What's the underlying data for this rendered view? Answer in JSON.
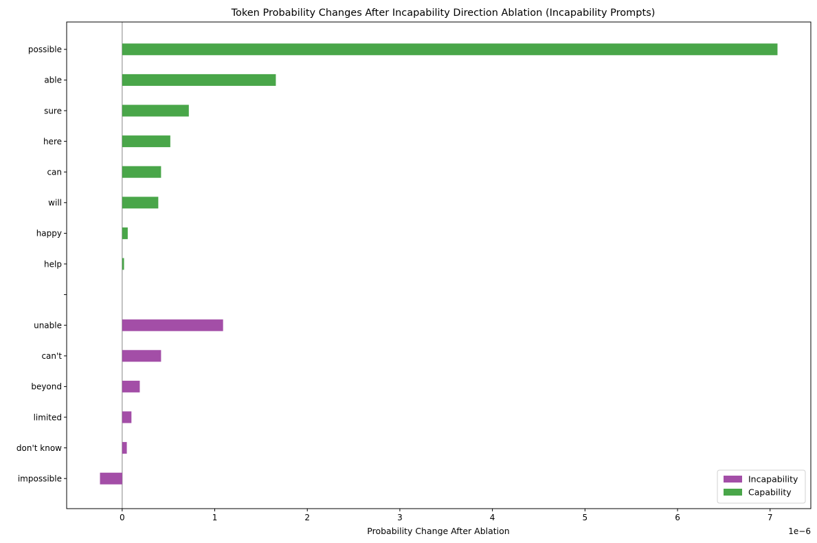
{
  "chart_data": {
    "type": "bar",
    "orientation": "horizontal",
    "title": "Token Probability Changes After Incapability Direction Ablation (Incapability Prompts)",
    "xlabel": "Probability Change After Ablation",
    "ylabel": "",
    "x_scale_label": "1e−6",
    "xlim": [
      -0.6,
      7.44
    ],
    "xticks": [
      0,
      1,
      2,
      3,
      4,
      5,
      6,
      7
    ],
    "grid": false,
    "legend_position": "lower-right",
    "categories": [
      "impossible",
      "don't know",
      "limited",
      "beyond",
      "can't",
      "unable",
      "",
      "help",
      "happy",
      "will",
      "can",
      "here",
      "sure",
      "able",
      "possible"
    ],
    "series": [
      {
        "name": "Incapability",
        "color": "#9b3fa0",
        "points": [
          {
            "label": "unable",
            "value": 1.09
          },
          {
            "label": "can't",
            "value": 0.42
          },
          {
            "label": "beyond",
            "value": 0.19
          },
          {
            "label": "limited",
            "value": 0.1
          },
          {
            "label": "don't know",
            "value": 0.05
          },
          {
            "label": "impossible",
            "value": -0.24
          }
        ]
      },
      {
        "name": "Capability",
        "color": "#3a9e3a",
        "points": [
          {
            "label": "possible",
            "value": 7.08
          },
          {
            "label": "able",
            "value": 1.66
          },
          {
            "label": "sure",
            "value": 0.72
          },
          {
            "label": "here",
            "value": 0.52
          },
          {
            "label": "can",
            "value": 0.42
          },
          {
            "label": "will",
            "value": 0.39
          },
          {
            "label": "happy",
            "value": 0.06
          },
          {
            "label": "help",
            "value": 0.02
          }
        ]
      }
    ]
  }
}
